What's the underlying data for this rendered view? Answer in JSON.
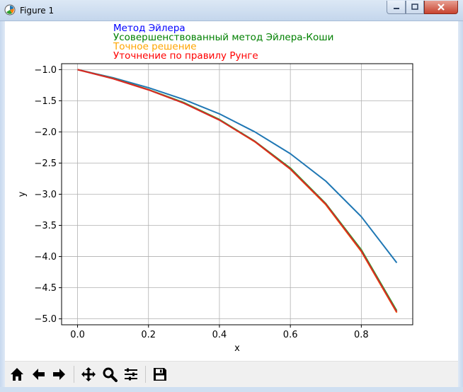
{
  "window": {
    "title": "Figure 1"
  },
  "colors": {
    "euler": "#0000ff",
    "improved": "#008000",
    "exact": "#ffa500",
    "runge": "#ff0000",
    "line_euler": "#1f77b4",
    "line_improved": "#2ca02c",
    "line_exact": "#ff7f0e",
    "line_runge": "#d62728"
  },
  "toolbar": {
    "buttons": [
      "home-icon",
      "back-icon",
      "forward-icon",
      "pan-icon",
      "zoom-icon",
      "configure-subplots-icon",
      "save-icon"
    ]
  },
  "chart_data": {
    "type": "line",
    "xlabel": "x",
    "ylabel": "y",
    "xlim": [
      -0.045,
      0.945
    ],
    "ylim": [
      -5.095,
      -0.905
    ],
    "xticks": [
      "0.0",
      "0.2",
      "0.4",
      "0.6",
      "0.8"
    ],
    "yticks": [
      "−1.0",
      "−1.5",
      "−2.0",
      "−2.5",
      "−3.0",
      "−3.5",
      "−4.0",
      "−4.5",
      "−5.0"
    ],
    "grid": true,
    "legend_placement": "above plot, left",
    "x": [
      0.0,
      0.1,
      0.2,
      0.3,
      0.4,
      0.5,
      0.6,
      0.7,
      0.8,
      0.9
    ],
    "series": [
      {
        "name": "Метод Эйлера",
        "values": [
          -1.0,
          -1.13,
          -1.29,
          -1.48,
          -1.71,
          -2.0,
          -2.35,
          -2.79,
          -3.36,
          -4.1
        ]
      },
      {
        "name": "Усовершенствованный метод Эйлера-Коши",
        "values": [
          -1.0,
          -1.14,
          -1.32,
          -1.53,
          -1.8,
          -2.15,
          -2.58,
          -3.15,
          -3.89,
          -4.87
        ]
      },
      {
        "name": "Точное решение",
        "values": [
          -1.0,
          -1.145,
          -1.325,
          -1.54,
          -1.81,
          -2.16,
          -2.6,
          -3.17,
          -3.92,
          -4.9
        ]
      },
      {
        "name": "Уточнение по правилу Рунге",
        "values": [
          -1.0,
          -1.145,
          -1.325,
          -1.54,
          -1.81,
          -2.155,
          -2.595,
          -3.16,
          -3.91,
          -4.89
        ]
      }
    ]
  }
}
